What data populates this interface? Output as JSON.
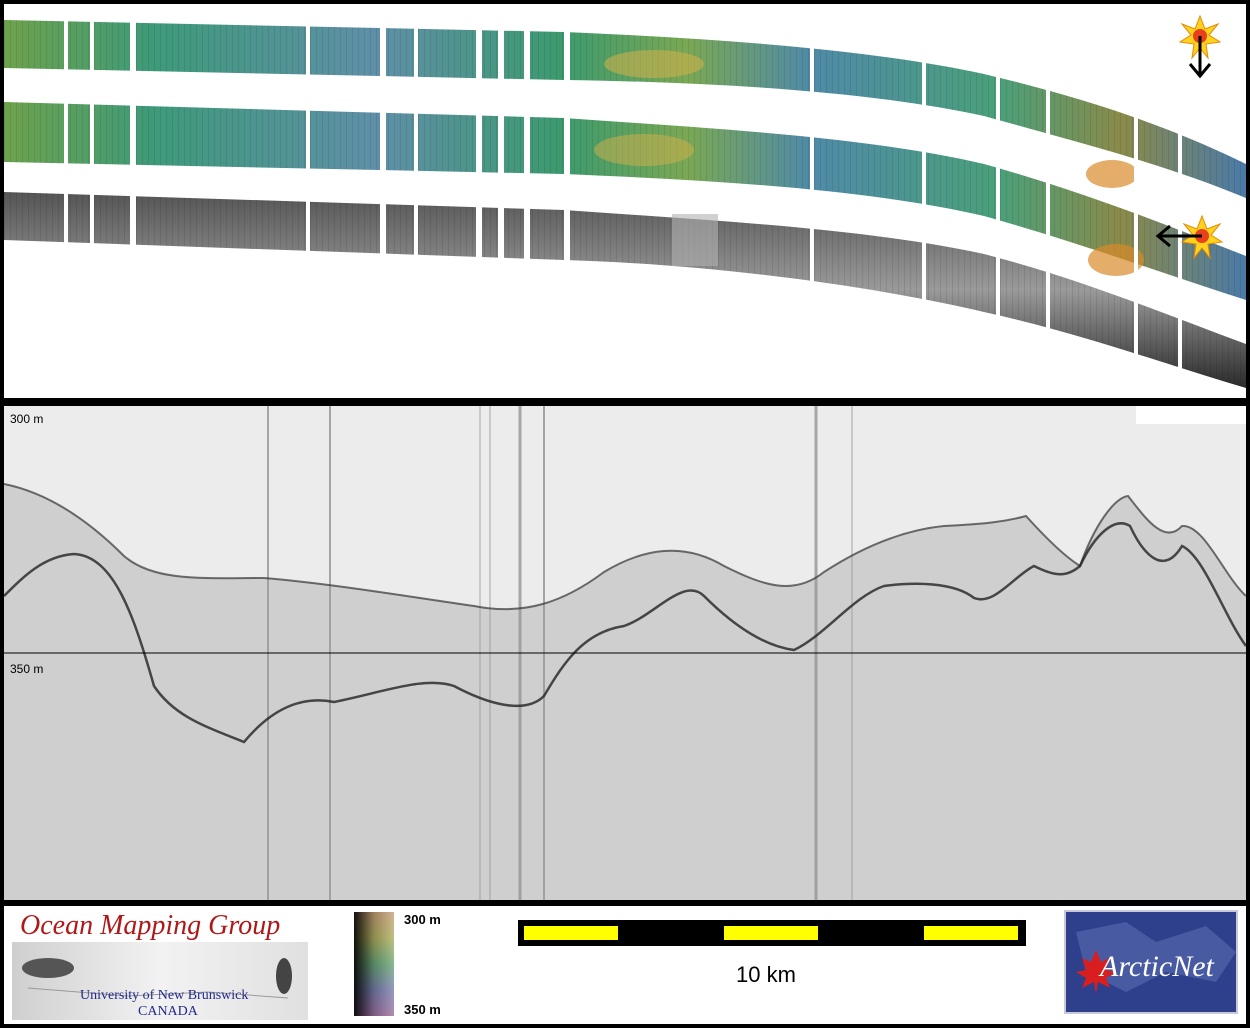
{
  "profile": {
    "top_depth_label": "300 m",
    "mid_depth_label": "350 m"
  },
  "legend": {
    "org_name": "Ocean Mapping Group",
    "org_university": "University of New Brunswick",
    "org_country": "CANADA",
    "colorbar_top": "300 m",
    "colorbar_bottom": "350 m",
    "scale_label": "10 km",
    "partner_logo_text": "ArcticNet"
  },
  "colors": {
    "scale_yellow": "#ffff00",
    "scale_black": "#000000",
    "omg_red": "#b01818",
    "unb_blue": "#202a8a",
    "arcticnet_blue": "#2e3f8c",
    "maple_red": "#d81e1e"
  },
  "icons": [
    "sun-marker-icon",
    "arrow-down-icon",
    "arrow-left-icon",
    "maple-leaf-icon"
  ]
}
